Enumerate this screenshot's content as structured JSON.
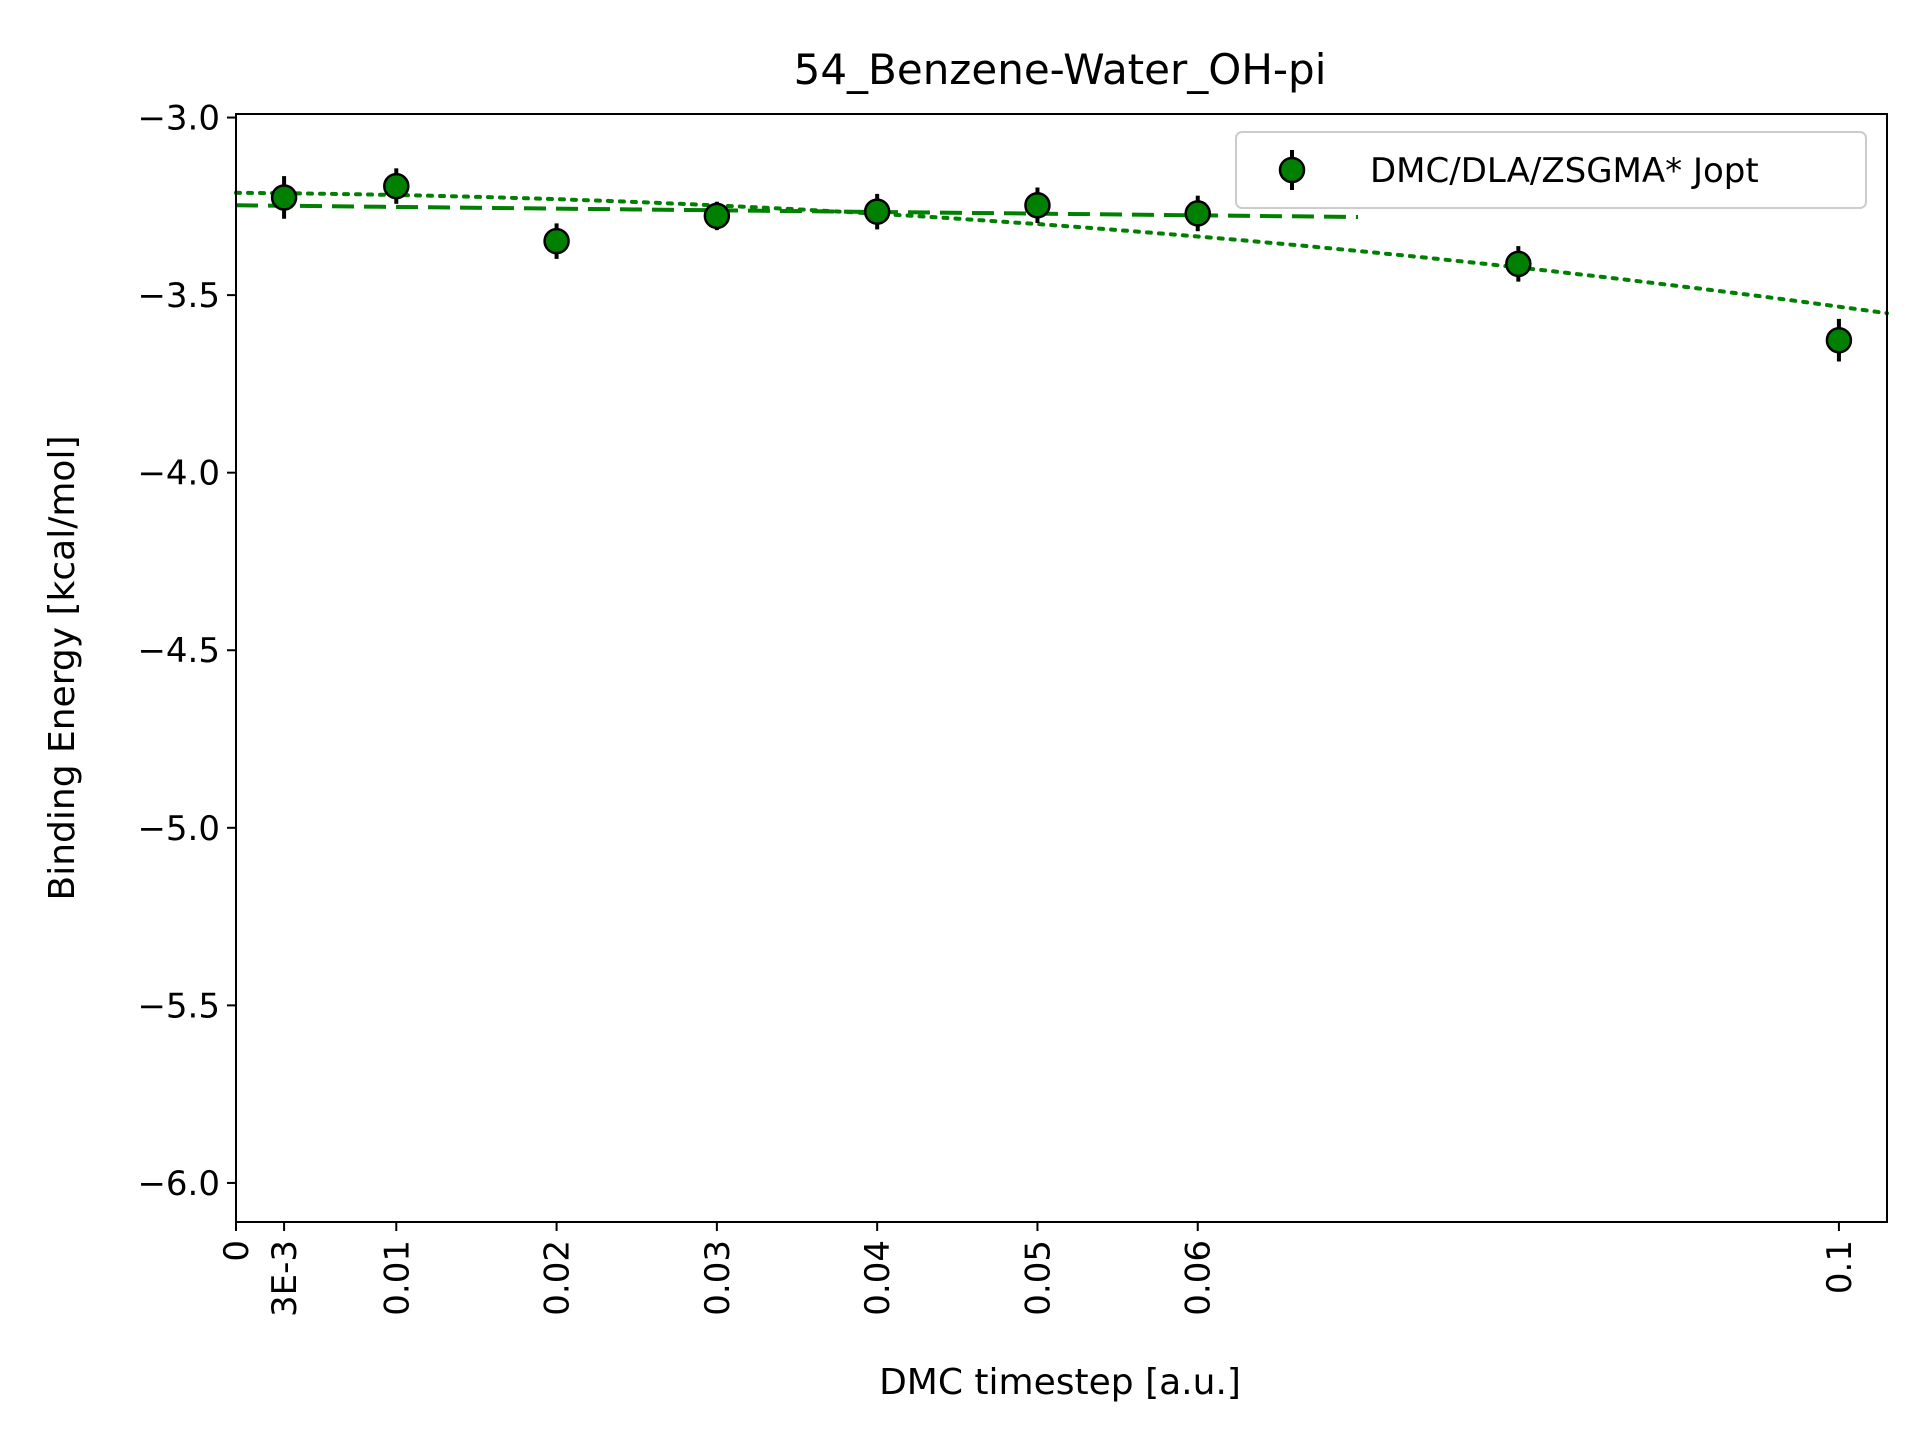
{
  "chart_data": {
    "type": "scatter",
    "title": "54_Benzene-Water_OH-pi",
    "xlabel": "DMC timestep [a.u.]",
    "ylabel": "Binding Energy [kcal/mol]",
    "xlim": [
      0,
      0.103
    ],
    "ylim": [
      -6.11,
      -2.99
    ],
    "x_ticks": [
      {
        "value": 0,
        "label": "0"
      },
      {
        "value": 0.003,
        "label": "3E-3"
      },
      {
        "value": 0.01,
        "label": "0.01"
      },
      {
        "value": 0.02,
        "label": "0.02"
      },
      {
        "value": 0.03,
        "label": "0.03"
      },
      {
        "value": 0.04,
        "label": "0.04"
      },
      {
        "value": 0.05,
        "label": "0.05"
      },
      {
        "value": 0.06,
        "label": "0.06"
      },
      {
        "value": 0.1,
        "label": "0.1"
      }
    ],
    "y_ticks": [
      {
        "value": -3.0,
        "label": "−3.0"
      },
      {
        "value": -3.5,
        "label": "−3.5"
      },
      {
        "value": -4.0,
        "label": "−4.0"
      },
      {
        "value": -4.5,
        "label": "−4.5"
      },
      {
        "value": -5.0,
        "label": "−5.0"
      },
      {
        "value": -5.5,
        "label": "−5.5"
      },
      {
        "value": -6.0,
        "label": "−6.0"
      }
    ],
    "grid": false,
    "legend_position": "top-right",
    "series": [
      {
        "name": "DMC/DLA/ZSGMA* Jopt",
        "color": "#008000",
        "edge_color": "#000000",
        "x": [
          0.003,
          0.01,
          0.02,
          0.03,
          0.04,
          0.05,
          0.06,
          0.08,
          0.1
        ],
        "y": [
          -3.225,
          -3.193,
          -3.348,
          -3.277,
          -3.265,
          -3.247,
          -3.27,
          -3.412,
          -3.627
        ],
        "err": [
          0.06,
          0.05,
          0.05,
          0.04,
          0.05,
          0.05,
          0.05,
          0.05,
          0.06
        ]
      }
    ],
    "fits": [
      {
        "style": "dashed",
        "color": "#008000",
        "x": [
          0,
          0.07
        ],
        "y": [
          -3.247,
          -3.28
        ]
      },
      {
        "style": "dotted",
        "color": "#008000",
        "x": [
          0,
          0.103
        ],
        "y": [
          -3.212,
          -3.551
        ],
        "quadratic_through": [
          0.05,
          -3.3
        ]
      }
    ]
  }
}
